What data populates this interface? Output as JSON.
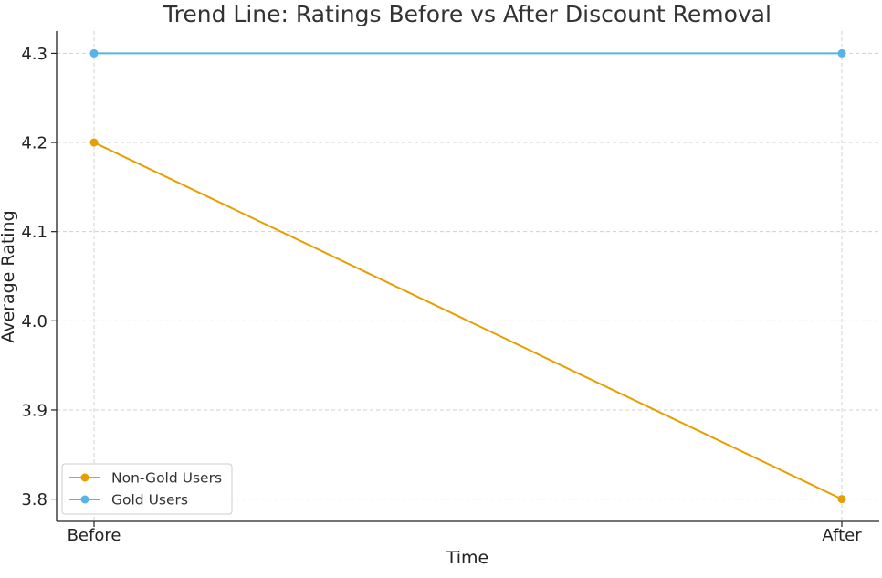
{
  "chart_data": {
    "type": "line",
    "title": "Trend Line: Ratings Before vs After Discount Removal",
    "xlabel": "Time",
    "ylabel": "Average Rating",
    "categories": [
      "Before",
      "After"
    ],
    "ylim": [
      3.775,
      4.325
    ],
    "yticks": [
      "3.8",
      "3.9",
      "4.0",
      "4.1",
      "4.2",
      "4.3"
    ],
    "grid": true,
    "legend_position": "bottom-left",
    "series": [
      {
        "name": "Non-Gold Users",
        "values": [
          4.2,
          3.8
        ],
        "color": "#E69F00"
      },
      {
        "name": "Gold Users",
        "values": [
          4.3,
          4.3
        ],
        "color": "#56B4E9"
      }
    ]
  }
}
